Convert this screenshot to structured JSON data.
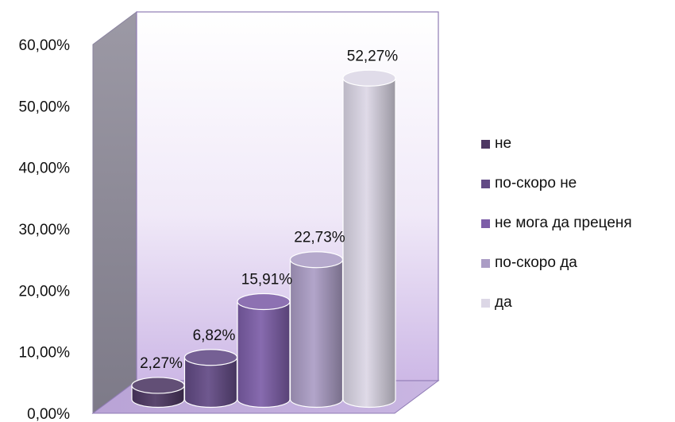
{
  "chart_data": {
    "type": "bar",
    "style": "3d-cylinder",
    "title": "",
    "xlabel": "",
    "ylabel": "",
    "ylim": [
      0,
      60
    ],
    "y_ticks": [
      "0,00%",
      "10,00%",
      "20,00%",
      "30,00%",
      "40,00%",
      "50,00%",
      "60,00%"
    ],
    "categories": [
      "не",
      "по-скоро не",
      "не мога да преценя",
      "по-скоро да",
      "да"
    ],
    "values": [
      2.27,
      6.82,
      15.91,
      22.73,
      52.27
    ],
    "data_labels": [
      "2,27%",
      "6,82%",
      "15,91%",
      "22,73%",
      "52,27%"
    ],
    "colors": [
      "#4d3763",
      "#624a85",
      "#7d5ea8",
      "#ab9dc5",
      "#dcd7e6"
    ],
    "legend_position": "right",
    "grid": false
  }
}
